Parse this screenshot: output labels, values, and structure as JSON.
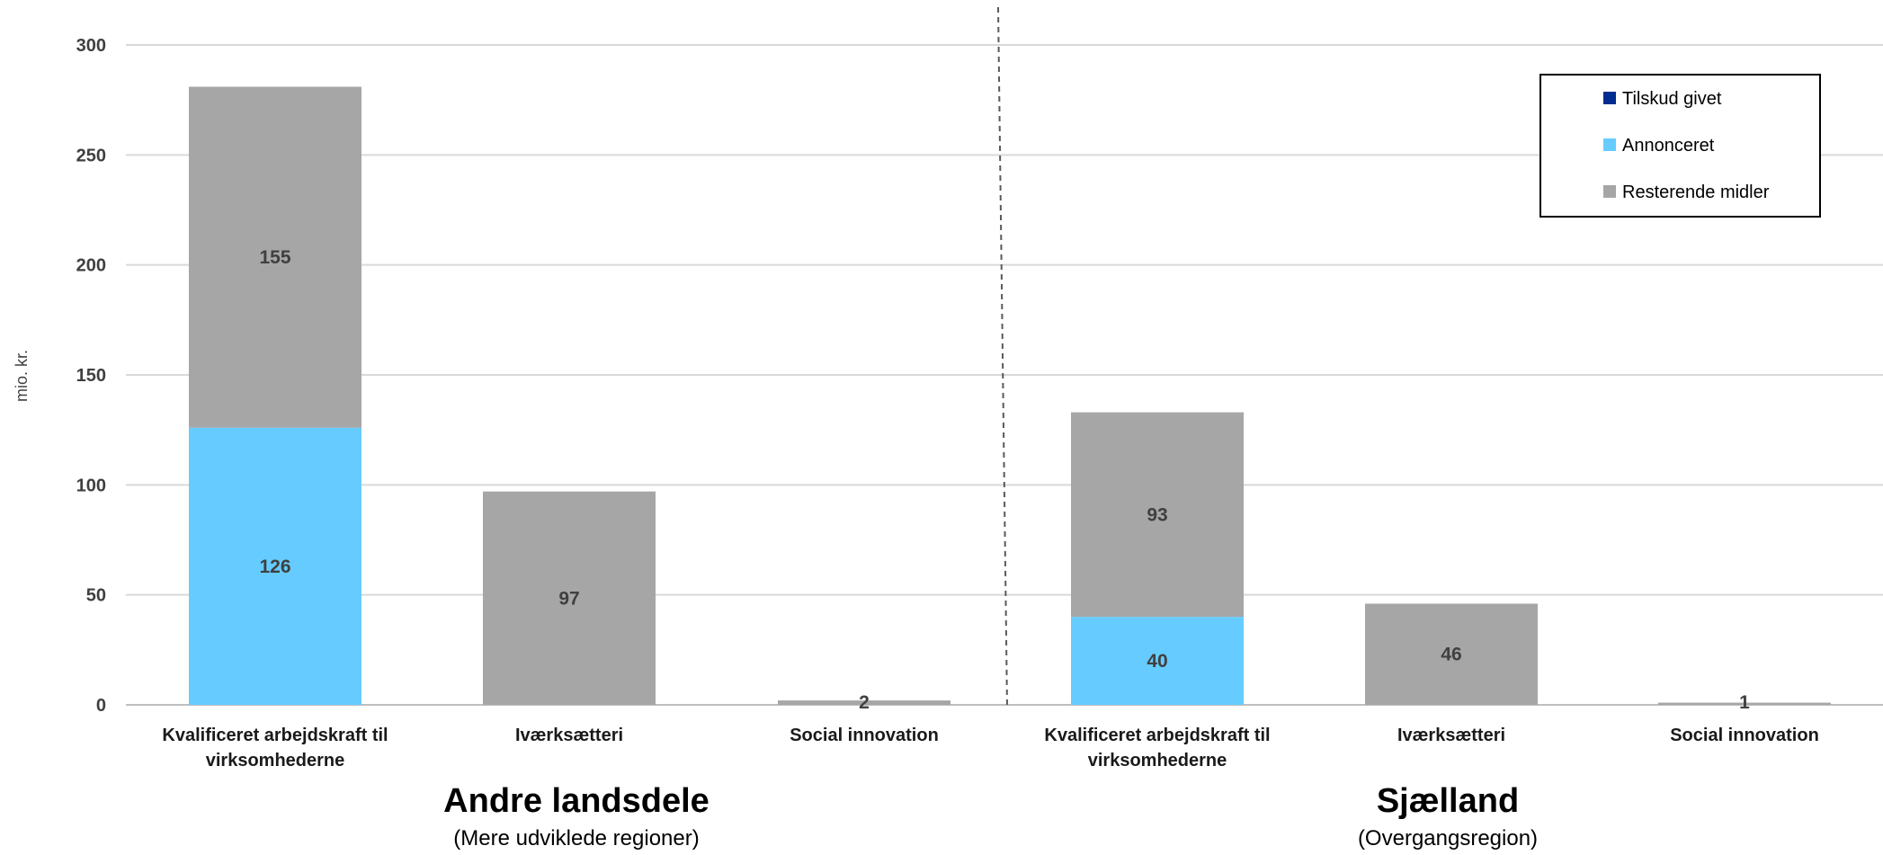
{
  "chart_data": {
    "type": "bar",
    "stacked": true,
    "ylabel": "mio. kr.",
    "ylim": [
      0,
      300
    ],
    "yticks": [
      0,
      50,
      100,
      150,
      200,
      250,
      300
    ],
    "grid": true,
    "legend_position": "top-right",
    "categories": [
      "Kvalificeret arbejdskraft til virksomhederne",
      "Iværksætteri",
      "Social innovation",
      "Kvalificeret arbejdskraft til virksomhederne",
      "Iværksætteri",
      "Social innovation"
    ],
    "groups": [
      {
        "name": "Andre landsdele",
        "subtitle": "(Mere udviklede regioner)",
        "category_indices": [
          0,
          1,
          2
        ]
      },
      {
        "name": "Sjælland",
        "subtitle": "(Overgangsregion)",
        "category_indices": [
          3,
          4,
          5
        ]
      }
    ],
    "series": [
      {
        "name": "Tilskud givet",
        "color": "#002d8f",
        "values": [
          0,
          0,
          0,
          0,
          0,
          0
        ]
      },
      {
        "name": "Annonceret",
        "color": "#66ccff",
        "values": [
          126,
          0,
          0,
          40,
          0,
          0
        ]
      },
      {
        "name": "Resterende midler",
        "color": "#a6a6a6",
        "values": [
          155,
          97,
          2,
          93,
          46,
          1
        ]
      }
    ]
  }
}
